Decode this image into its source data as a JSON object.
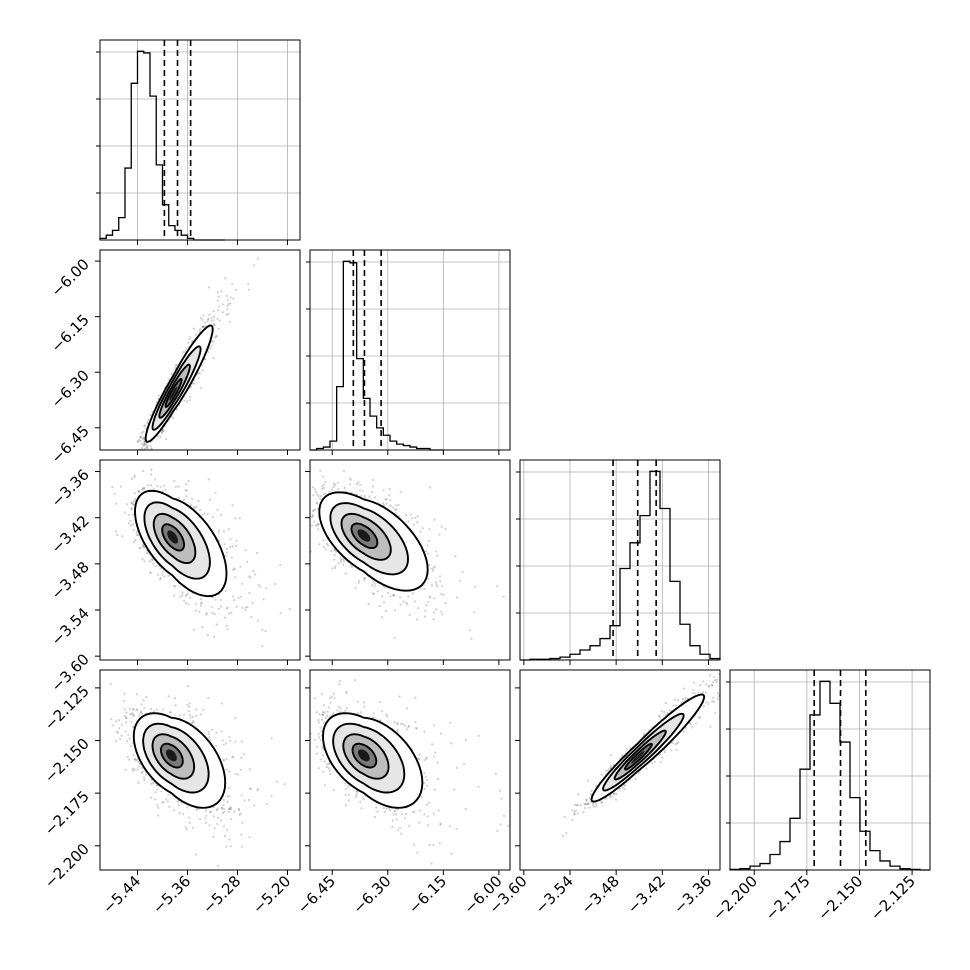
{
  "chart_data": {
    "type": "corner",
    "grid": true,
    "parameters": [
      {
        "index": 0,
        "range": [
          -5.5,
          -5.18
        ],
        "ticks": [
          -5.44,
          -5.36,
          -5.28,
          -5.2
        ],
        "tick_labels": [
          "−5.44",
          "−5.36",
          "−5.28",
          "−5.20"
        ],
        "quantiles": [
          -5.397,
          -5.376,
          -5.355
        ],
        "hist_start": -5.5,
        "hist_step": 0.01,
        "hist_counts": [
          1,
          3,
          6,
          14,
          45,
          98,
          118,
          117,
          90,
          47,
          22,
          9,
          6,
          3,
          1,
          0,
          0,
          0,
          0,
          0
        ]
      },
      {
        "index": 1,
        "range": [
          -6.51,
          -5.97
        ],
        "ticks": [
          -6.45,
          -6.3,
          -6.15,
          -6.0
        ],
        "tick_labels": [
          "−6.45",
          "−6.30",
          "−6.15",
          "−6.00"
        ],
        "quantiles": [
          -6.393,
          -6.363,
          -6.318
        ],
        "hist_start": -6.51,
        "hist_step": 0.018,
        "hist_counts": [
          0,
          1,
          2,
          6,
          43,
          128,
          127,
          62,
          35,
          23,
          15,
          10,
          6,
          4,
          3,
          2,
          1,
          1,
          0,
          0
        ]
      },
      {
        "index": 2,
        "range": [
          -3.605,
          -3.345
        ],
        "ticks": [
          -3.6,
          -3.54,
          -3.48,
          -3.42,
          -3.36
        ],
        "tick_labels": [
          "−3.60",
          "−3.54",
          "−3.48",
          "−3.42",
          "−3.36"
        ],
        "quantiles": [
          -3.484,
          -3.452,
          -3.428
        ],
        "hist_start": -3.605,
        "hist_step": 0.013,
        "hist_counts": [
          0,
          0.5,
          0.5,
          1,
          2,
          4,
          7,
          10,
          15,
          24,
          64,
          82,
          101,
          132,
          106,
          55,
          25,
          10,
          4,
          1
        ]
      },
      {
        "index": 3,
        "range": [
          -2.2115,
          -2.1165
        ],
        "ticks": [
          -2.2,
          -2.175,
          -2.15,
          -2.125
        ],
        "tick_labels": [
          "−2.200",
          "−2.175",
          "−2.150",
          "−2.125"
        ],
        "quantiles": [
          -2.1715,
          -2.159,
          -2.147
        ],
        "hist_start": -2.2115,
        "hist_step": 0.00475,
        "hist_counts": [
          0.5,
          1,
          3,
          5,
          12,
          22,
          40,
          78,
          120,
          146,
          129,
          99,
          56,
          30,
          15,
          7,
          3,
          1,
          0.5,
          0
        ]
      }
    ],
    "pairs": [
      {
        "row": 1,
        "col": 0,
        "center": [
          -5.383,
          -6.358
        ],
        "sigma": [
          0.022,
          0.065
        ],
        "rho": 0.93
      },
      {
        "row": 2,
        "col": 0,
        "center": [
          -5.384,
          -3.445
        ],
        "sigma": [
          0.03,
          0.03
        ],
        "rho": -0.55
      },
      {
        "row": 2,
        "col": 1,
        "center": [
          -6.365,
          -3.443
        ],
        "sigma": [
          0.06,
          0.028
        ],
        "rho": -0.55
      },
      {
        "row": 3,
        "col": 0,
        "center": [
          -5.386,
          -2.157
        ],
        "sigma": [
          0.03,
          0.01
        ],
        "rho": -0.45
      },
      {
        "row": 3,
        "col": 1,
        "center": [
          -6.365,
          -2.157
        ],
        "sigma": [
          0.055,
          0.01
        ],
        "rho": -0.45
      },
      {
        "row": 3,
        "col": 2,
        "center": [
          -3.452,
          -2.158
        ],
        "sigma": [
          0.03,
          0.0105
        ],
        "rho": 0.95
      }
    ]
  }
}
